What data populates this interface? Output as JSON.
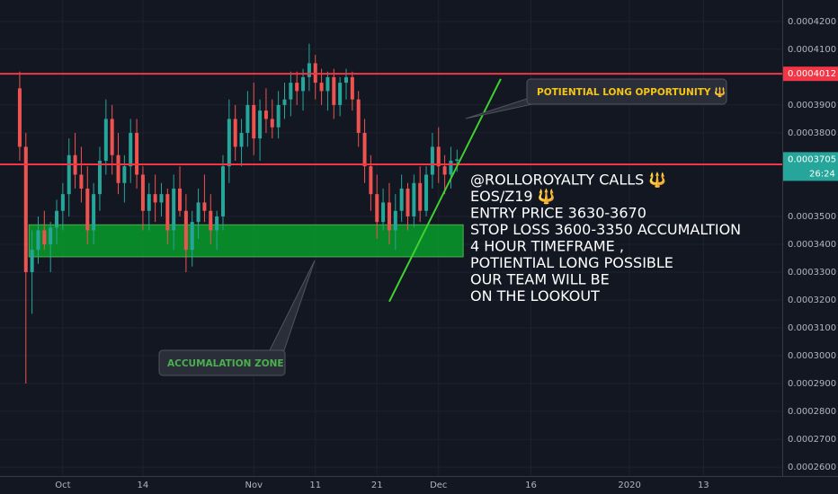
{
  "chart_data": {
    "type": "candlestick",
    "up_color": "#26a69a",
    "down_color": "#ef5350",
    "xlim": [
      -3.2,
      123.8
    ],
    "xticks": [
      {
        "value": 7,
        "label": "Oct"
      },
      {
        "value": 20,
        "label": "14"
      },
      {
        "value": 38,
        "label": "Nov"
      },
      {
        "value": 48,
        "label": "11"
      },
      {
        "value": 58,
        "label": "21"
      },
      {
        "value": 68,
        "label": "Dec"
      },
      {
        "value": 83,
        "label": "16"
      },
      {
        "value": 99,
        "label": "2020"
      },
      {
        "value": 111,
        "label": "13"
      }
    ],
    "ylim": [
      0.0002568,
      0.0004277
    ],
    "yticks": [
      {
        "value": 0.00042,
        "label": "0.0004200"
      },
      {
        "value": 0.00041,
        "label": "0.0004100"
      },
      {
        "value": 0.00039,
        "label": "0.0003900"
      },
      {
        "value": 0.00038,
        "label": "0.0003800"
      },
      {
        "value": 0.00035,
        "label": "0.0003500"
      },
      {
        "value": 0.00034,
        "label": "0.0003400"
      },
      {
        "value": 0.00033,
        "label": "0.0003300"
      },
      {
        "value": 0.00032,
        "label": "0.0003200"
      },
      {
        "value": 0.00031,
        "label": "0.0003100"
      },
      {
        "value": 0.0003,
        "label": "0.0003000"
      },
      {
        "value": 0.00029,
        "label": "0.0002900"
      },
      {
        "value": 0.00028,
        "label": "0.0002800"
      },
      {
        "value": 0.00027,
        "label": "0.0002700"
      },
      {
        "value": 0.00026,
        "label": "0.0002600"
      }
    ],
    "series": {
      "open": [
        0.000396,
        0.000375,
        0.00033,
        0.000338,
        0.000345,
        0.00034,
        0.000346,
        0.000352,
        0.000358,
        0.000372,
        0.000365,
        0.00036,
        0.000345,
        0.000358,
        0.00037,
        0.000385,
        0.000372,
        0.000362,
        0.000368,
        0.00038,
        0.000365,
        0.000352,
        0.000358,
        0.000355,
        0.000358,
        0.000345,
        0.00036,
        0.000352,
        0.000338,
        0.000348,
        0.000355,
        0.000352,
        0.000345,
        0.00035,
        0.000368,
        0.000385,
        0.000375,
        0.00038,
        0.00039,
        0.000378,
        0.000388,
        0.000385,
        0.000382,
        0.00039,
        0.000392,
        0.000398,
        0.000395,
        0.0004,
        0.000405,
        0.000398,
        0.000395,
        0.0004,
        0.00039,
        0.000398,
        0.0004,
        0.000392,
        0.00038,
        0.000368,
        0.000358,
        0.000348,
        0.000355,
        0.000345,
        0.000352,
        0.00036,
        0.00035,
        0.000362,
        0.000352,
        0.000365,
        0.000375,
        0.000368,
        0.000365,
        0.00037
      ],
      "high": [
        0.000402,
        0.00038,
        0.000345,
        0.00035,
        0.000352,
        0.000348,
        0.000356,
        0.000362,
        0.000378,
        0.00038,
        0.000375,
        0.000368,
        0.000362,
        0.000375,
        0.000392,
        0.00039,
        0.00038,
        0.000372,
        0.000385,
        0.000385,
        0.000368,
        0.000362,
        0.000365,
        0.000362,
        0.00036,
        0.000365,
        0.000368,
        0.000358,
        0.000352,
        0.00036,
        0.000365,
        0.000358,
        0.000352,
        0.000372,
        0.000392,
        0.00039,
        0.000385,
        0.000395,
        0.000398,
        0.000392,
        0.000396,
        0.000392,
        0.000395,
        0.000398,
        0.000402,
        0.000402,
        0.000403,
        0.000412,
        0.000408,
        0.000403,
        0.000402,
        0.000403,
        0.0004,
        0.000403,
        0.000402,
        0.000395,
        0.000385,
        0.000372,
        0.000365,
        0.00036,
        0.000362,
        0.000358,
        0.000365,
        0.000362,
        0.000365,
        0.000368,
        0.000368,
        0.00038,
        0.000382,
        0.000372,
        0.000375,
        0.000374
      ],
      "low": [
        0.00037,
        0.00029,
        0.000315,
        0.000333,
        0.000338,
        0.00033,
        0.00034,
        0.000345,
        0.00035,
        0.00036,
        0.000355,
        0.00034,
        0.00034,
        0.000352,
        0.000365,
        0.000365,
        0.000358,
        0.000355,
        0.000362,
        0.00036,
        0.000345,
        0.000345,
        0.000348,
        0.00035,
        0.00034,
        0.000338,
        0.00035,
        0.00033,
        0.000332,
        0.000342,
        0.000348,
        0.00034,
        0.000338,
        0.000345,
        0.000362,
        0.00037,
        0.000368,
        0.000375,
        0.000372,
        0.00037,
        0.00038,
        0.000378,
        0.000378,
        0.000385,
        0.000386,
        0.00039,
        0.000388,
        0.000395,
        0.000392,
        0.00039,
        0.000388,
        0.000385,
        0.000386,
        0.000392,
        0.000388,
        0.000375,
        0.000362,
        0.000352,
        0.000342,
        0.000345,
        0.00034,
        0.000338,
        0.000348,
        0.000345,
        0.000346,
        0.000348,
        0.00035,
        0.00036,
        0.000362,
        0.000358,
        0.00036,
        0.000366
      ],
      "close": [
        0.000375,
        0.00033,
        0.000338,
        0.000345,
        0.00034,
        0.000346,
        0.000352,
        0.000358,
        0.000372,
        0.000365,
        0.00036,
        0.000345,
        0.000358,
        0.00037,
        0.000385,
        0.000372,
        0.000362,
        0.000368,
        0.00038,
        0.000365,
        0.000352,
        0.000358,
        0.000355,
        0.000358,
        0.000345,
        0.00036,
        0.000352,
        0.000338,
        0.000348,
        0.000355,
        0.000352,
        0.000345,
        0.00035,
        0.000368,
        0.000385,
        0.000375,
        0.00038,
        0.00039,
        0.000378,
        0.000388,
        0.000385,
        0.000382,
        0.00039,
        0.000392,
        0.000398,
        0.000395,
        0.0004,
        0.000405,
        0.000398,
        0.000395,
        0.0004,
        0.00039,
        0.000398,
        0.0004,
        0.000392,
        0.00038,
        0.000368,
        0.000358,
        0.000348,
        0.000355,
        0.000345,
        0.000352,
        0.00036,
        0.00035,
        0.000362,
        0.000352,
        0.000365,
        0.000375,
        0.000368,
        0.000365,
        0.00037,
        0.0003705
      ]
    },
    "countdown": "26:24",
    "hlines": [
      {
        "value": 0.0004012,
        "color": "#f23645"
      },
      {
        "value": 0.0003687,
        "color": "#f23645"
      }
    ],
    "zone": {
      "x": [
        1.5,
        72
      ],
      "y": [
        0.0003355,
        0.000347
      ],
      "color": "#089c2a"
    },
    "trendline": {
      "x": [
        60,
        78.1
      ],
      "y": [
        0.0003194,
        0.0003994
      ],
      "color": "#3fd12f"
    },
    "callouts": [
      {
        "text": "POTIENTIAL LONG OPPORTUNITY 🔱",
        "color": "#f5c518"
      },
      {
        "text": "ACCUMALATION ZONE",
        "color": "#4caf50"
      }
    ],
    "note_lines": [
      "@ROLLOROYALTY CALLS 🔱",
      "EOS/Z19 🔱",
      "ENTRY PRICE 3630-3670",
      "STOP LOSS 3600-3350 ACCUMALTION",
      "4 HOUR TIMEFRAME ,",
      " POTIENTIAL LONG POSSIBLE",
      " OUR TEAM WILL BE",
      "ON THE LOOKOUT"
    ]
  }
}
